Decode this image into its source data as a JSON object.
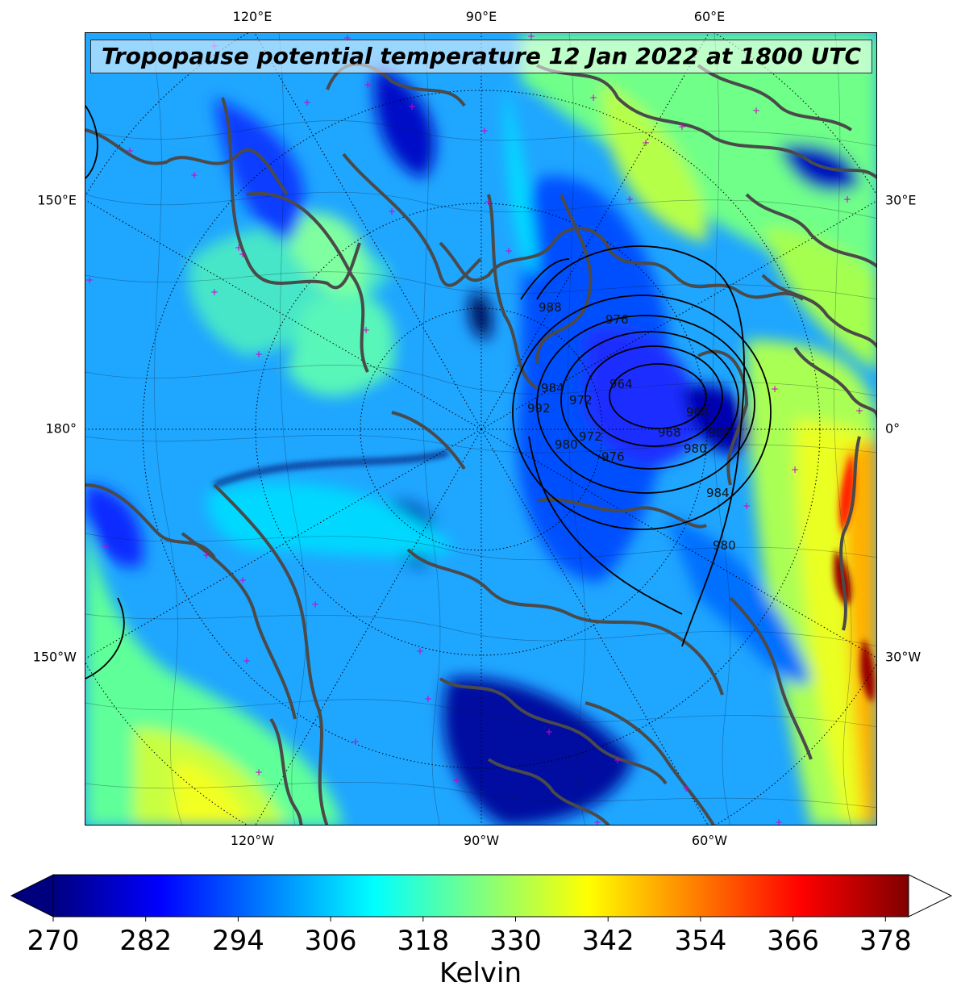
{
  "title": "Tropopause potential temperature 12 Jan 2022 at 1800 UTC",
  "graticule_labels": {
    "top": [
      "120°E",
      "90°E",
      "60°E"
    ],
    "bottom": [
      "120°W",
      "90°W",
      "60°W"
    ],
    "left": [
      "150°E",
      "180°",
      "150°W"
    ],
    "right": [
      "30°E",
      "0°",
      "30°W"
    ]
  },
  "pressure_contour_labels": [
    "988",
    "976",
    "984",
    "992",
    "972",
    "964",
    "968",
    "968",
    "980",
    "988",
    "972",
    "980",
    "976",
    "984",
    "980"
  ],
  "colorbar": {
    "tick_labels": [
      "270",
      "282",
      "294",
      "306",
      "318",
      "330",
      "342",
      "354",
      "366",
      "378"
    ],
    "unit": "Kelvin",
    "range": [
      270,
      381
    ],
    "colormap": "jet",
    "colors": [
      "#00007f",
      "#0000ff",
      "#007fff",
      "#00ffff",
      "#7fff7f",
      "#ffff00",
      "#ff7f00",
      "#ff0000",
      "#7f0000"
    ]
  },
  "map": {
    "projection": "north-polar-stereographic",
    "field": "tropopause potential temperature",
    "overlay": "mean sea level pressure contours (hPa)",
    "marker_color": "#cc00cc",
    "coastline_color": "#444444"
  }
}
